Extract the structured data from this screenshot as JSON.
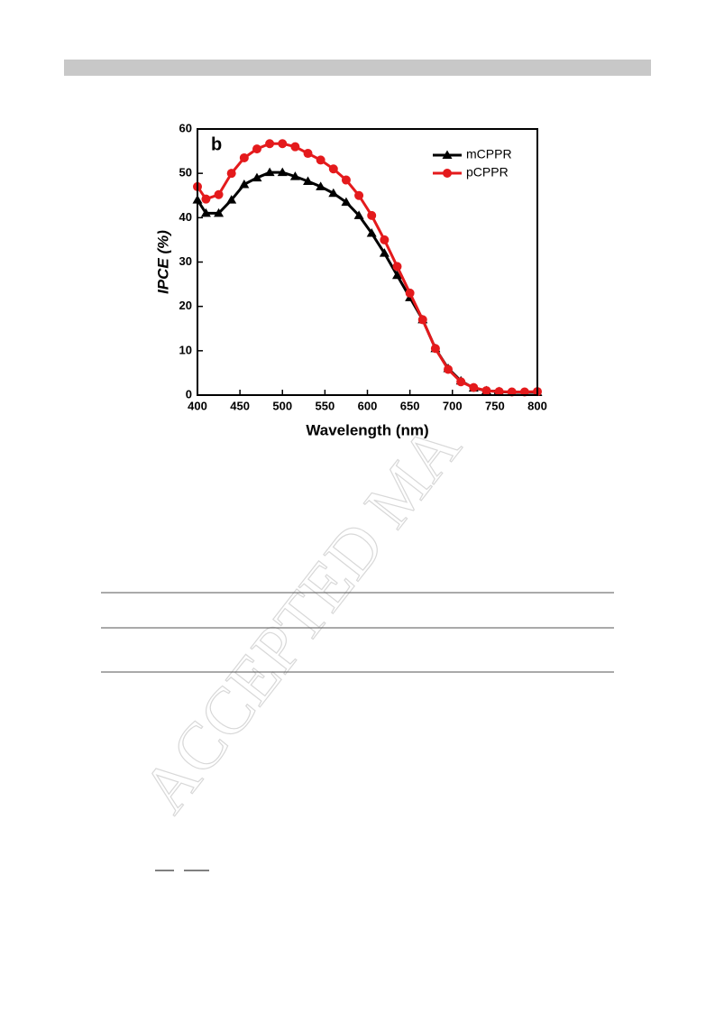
{
  "chart_data": {
    "type": "line",
    "annotation": "b",
    "x_label": "Wavelength (nm)",
    "y_label": "IPCE (%)",
    "x": [
      400,
      410,
      425,
      440,
      455,
      470,
      485,
      500,
      515,
      530,
      545,
      560,
      575,
      590,
      605,
      620,
      635,
      650,
      665,
      680,
      695,
      710,
      725,
      740,
      755,
      770,
      785,
      800
    ],
    "series": [
      {
        "name": "mCPPR",
        "color": "#000000",
        "marker": "triangle",
        "values": [
          44,
          41,
          41,
          44,
          47.5,
          49,
          50.2,
          50.2,
          49.3,
          48.2,
          47,
          45.5,
          43.5,
          40.5,
          36.5,
          32,
          27,
          22,
          17,
          10.5,
          6,
          3.2,
          1.6,
          1,
          0.8,
          0.6,
          0.6,
          0.6
        ]
      },
      {
        "name": "pCPPR",
        "color": "#e41a1c",
        "marker": "circle",
        "values": [
          47,
          44.2,
          45.2,
          50,
          53.5,
          55.5,
          56.7,
          56.7,
          56,
          54.5,
          53,
          51,
          48.5,
          45,
          40.5,
          35,
          29,
          23,
          17,
          10.5,
          5.8,
          3,
          1.7,
          1,
          0.8,
          0.7,
          0.7,
          0.8
        ]
      }
    ],
    "xlim": [
      400,
      800
    ],
    "xticks": [
      400,
      450,
      500,
      550,
      600,
      650,
      700,
      750,
      800
    ],
    "ylim": [
      0,
      60
    ],
    "yticks": [
      0,
      10,
      20,
      30,
      40,
      50,
      60
    ],
    "legend": "upper-right"
  },
  "watermark": "ACCEPTED MA"
}
